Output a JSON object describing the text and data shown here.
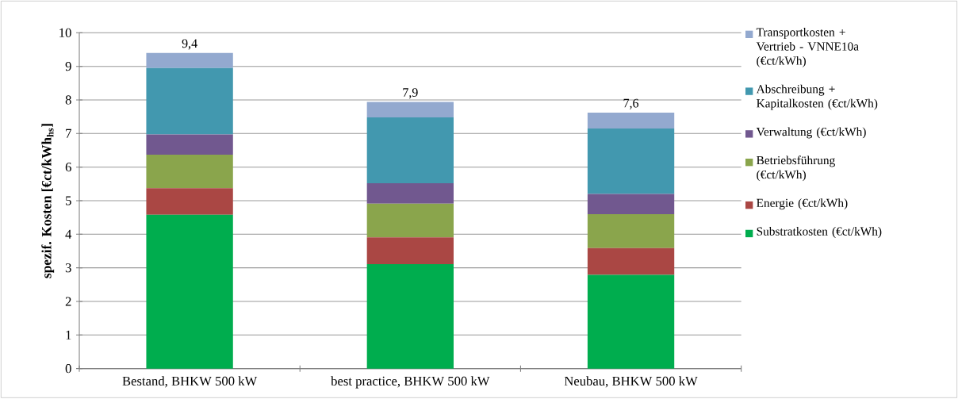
{
  "chart_data": {
    "type": "bar",
    "stacked": true,
    "ylabel": "spezif. Kosten [€ct/kWh$_{hs}$]",
    "categories": [
      "Bestand, BHKW 500 kW",
      "best practice, BHKW 500 kW",
      "Neubau, BHKW 500 kW"
    ],
    "series": [
      {
        "name": "Substratkosten (€ct/kWh)",
        "color": "#00ad4e",
        "values": [
          4.58,
          3.11,
          2.79
        ]
      },
      {
        "name": "Energie (€ct/kWh)",
        "color": "#aa4744",
        "values": [
          0.79,
          0.8,
          0.8
        ]
      },
      {
        "name": "Betriebsführung (€ct/kWh)",
        "color": "#8aa54c",
        "values": [
          1.0,
          1.0,
          1.01
        ]
      },
      {
        "name": "Verwaltung (€ct/kWh)",
        "color": "#71588f",
        "values": [
          0.6,
          0.61,
          0.6
        ]
      },
      {
        "name": "Abschreibung + Kapitalkosten (€ct/kWh)",
        "color": "#4298af",
        "values": [
          1.98,
          1.96,
          1.95
        ]
      },
      {
        "name": "Transportkosten + Vertrieb - VNNE10a (€ct/kWh)",
        "color": "#93a9cf",
        "values": [
          0.45,
          0.46,
          0.47
        ]
      }
    ],
    "totals": [
      "9,4",
      "7,9",
      "7,6"
    ],
    "ylim": [
      0,
      10
    ],
    "yticks": [
      0,
      1,
      2,
      3,
      4,
      5,
      6,
      7,
      8,
      9,
      10
    ],
    "grid": "y",
    "legend": "right"
  }
}
